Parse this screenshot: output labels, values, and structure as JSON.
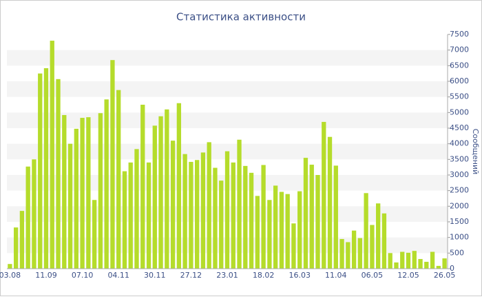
{
  "chart_data": {
    "type": "bar",
    "title": "Статистика активности",
    "y_label": "Сообщений",
    "color": "#b5dc2b",
    "categories": [
      "03.08",
      null,
      null,
      null,
      null,
      null,
      "11.09",
      null,
      null,
      null,
      null,
      null,
      "07.10",
      null,
      null,
      null,
      null,
      null,
      "04.11",
      null,
      null,
      null,
      null,
      null,
      "30.11",
      null,
      null,
      null,
      null,
      null,
      "27.12",
      null,
      null,
      null,
      null,
      null,
      "23.01",
      null,
      null,
      null,
      null,
      null,
      "18.02",
      null,
      null,
      null,
      null,
      null,
      "16.03",
      null,
      null,
      null,
      null,
      null,
      "11.04",
      null,
      null,
      null,
      null,
      null,
      "06.05",
      null,
      null,
      null,
      null,
      null,
      "12.05",
      null,
      null,
      null,
      null,
      null,
      "26.05"
    ],
    "values": [
      150,
      1320,
      1850,
      3270,
      3500,
      6250,
      6420,
      7300,
      6070,
      4920,
      4000,
      4480,
      4830,
      4850,
      2200,
      4980,
      5420,
      6680,
      5720,
      3120,
      3400,
      3830,
      5250,
      3400,
      4580,
      4880,
      5100,
      4100,
      5300,
      3670,
      3420,
      3480,
      3720,
      4050,
      3230,
      2820,
      3760,
      3400,
      4130,
      3290,
      3070,
      2330,
      3320,
      2200,
      2660,
      2460,
      2390,
      1450,
      2480,
      3550,
      3330,
      3000,
      4700,
      4220,
      3300,
      950,
      850,
      1220,
      980,
      2420,
      1400,
      2090,
      1770,
      500,
      200,
      540,
      510,
      570,
      310,
      220,
      540,
      90,
      330
    ],
    "ylim": [
      0,
      7500
    ],
    "yticks": [
      0,
      500,
      1000,
      1500,
      2000,
      2500,
      3000,
      3500,
      4000,
      4500,
      5000,
      5500,
      6000,
      6500,
      7000,
      7500
    ],
    "grid": true
  }
}
